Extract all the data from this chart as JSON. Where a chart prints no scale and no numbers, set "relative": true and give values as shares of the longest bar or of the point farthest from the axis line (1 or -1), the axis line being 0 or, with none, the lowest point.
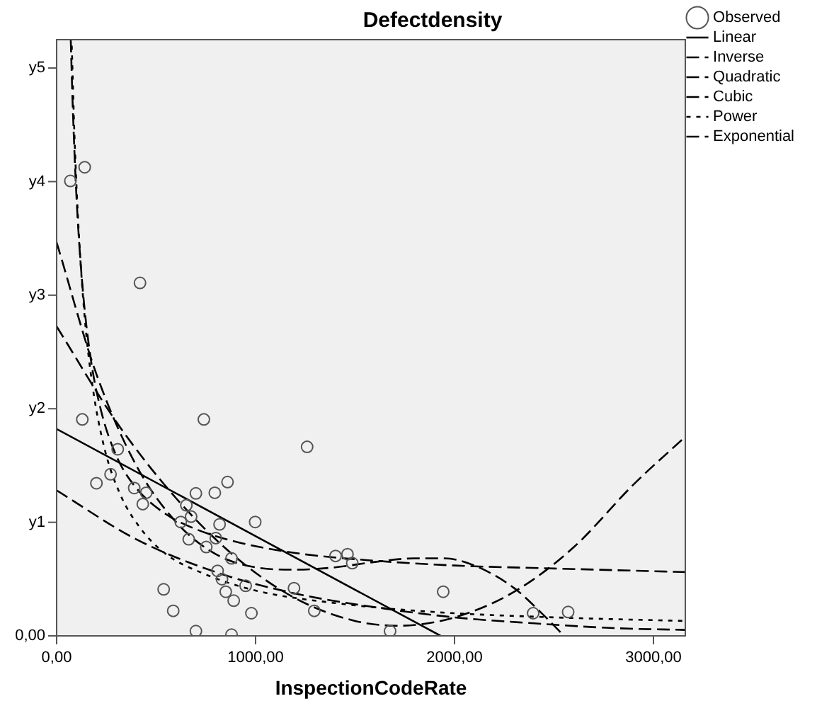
{
  "chart_data": {
    "type": "scatter",
    "title": "Defectdensity",
    "xlabel": "InspectionCodeRate",
    "relative": true,
    "xlim": [
      0,
      3160
    ],
    "xticks": [
      {
        "value": 0,
        "label": "0,00"
      },
      {
        "value": 1000,
        "label": "1000,00"
      },
      {
        "value": 2000,
        "label": "2000,00"
      },
      {
        "value": 3000,
        "label": "3000,00"
      }
    ],
    "annotations": [
      "0,00",
      "y1",
      "y2",
      "y3",
      "y4",
      "y5"
    ],
    "legend": "top right",
    "series": [
      {
        "name": "Observed",
        "type": "scatter",
        "marker": "circle",
        "color": "#555555",
        "x": [
          69,
          141,
          419,
          129,
          200,
          271,
          307,
          390,
          433,
          450,
          538,
          586,
          624,
          652,
          664,
          676,
          700,
          700,
          740,
          752,
          795,
          800,
          809,
          819,
          831,
          850,
          859,
          879,
          879,
          890,
          950,
          979,
          998,
          1193,
          1259,
          1295,
          1402,
          1462,
          1486,
          1676,
          1943,
          2395,
          2571
        ],
        "values": [
          0.763,
          0.786,
          0.592,
          0.363,
          0.256,
          0.271,
          0.313,
          0.248,
          0.221,
          0.24,
          0.078,
          0.042,
          0.191,
          0.219,
          0.162,
          0.2,
          0.239,
          0.008,
          0.363,
          0.149,
          0.24,
          0.164,
          0.109,
          0.187,
          0.095,
          0.074,
          0.258,
          0.13,
          0.002,
          0.059,
          0.084,
          0.038,
          0.191,
          0.08,
          0.317,
          0.042,
          0.134,
          0.137,
          0.122,
          0.008,
          0.074,
          0.038,
          0.04
        ]
      },
      {
        "name": "Linear",
        "type": "line",
        "line_style": "solid",
        "color": "#000000",
        "x": [
          0,
          1930
        ],
        "values": [
          0.347,
          0
        ]
      },
      {
        "name": "Inverse",
        "type": "line",
        "line_style": "dashed",
        "color": "#000000",
        "x": [
          71,
          80,
          100,
          130,
          170,
          220,
          300,
          400,
          550,
          700,
          900,
          1200,
          1600,
          2000,
          2500,
          3160
        ],
        "values": [
          1,
          0.897,
          0.735,
          0.586,
          0.468,
          0.382,
          0.302,
          0.248,
          0.204,
          0.179,
          0.158,
          0.139,
          0.126,
          0.118,
          0.113,
          0.107
        ]
      },
      {
        "name": "Quadratic",
        "type": "line",
        "line_style": "dashed",
        "color": "#000000",
        "x": [
          0,
          300,
          600,
          900,
          1200,
          1500,
          1720,
          2000,
          2300,
          2600,
          2900,
          3160
        ],
        "values": [
          0.519,
          0.359,
          0.231,
          0.132,
          0.063,
          0.025,
          0.017,
          0.031,
          0.074,
          0.149,
          0.254,
          0.334
        ]
      },
      {
        "name": "Cubic",
        "type": "line",
        "line_style": "dashed",
        "color": "#000000",
        "x": [
          0,
          200,
          400,
          600,
          800,
          1000,
          1200,
          1400,
          1600,
          1800,
          1950,
          2100,
          2300,
          2450,
          2550
        ],
        "values": [
          0.66,
          0.439,
          0.286,
          0.191,
          0.137,
          0.115,
          0.111,
          0.115,
          0.124,
          0.13,
          0.13,
          0.118,
          0.08,
          0.034,
          0
        ]
      },
      {
        "name": "Power",
        "type": "line",
        "line_style": "dotted",
        "color": "#000000",
        "x": [
          76,
          90,
          110,
          140,
          180,
          240,
          320,
          420,
          550,
          735,
          1000,
          1400,
          1900,
          2500,
          3160
        ],
        "values": [
          0.99,
          0.836,
          0.685,
          0.538,
          0.42,
          0.315,
          0.237,
          0.181,
          0.137,
          0.105,
          0.076,
          0.055,
          0.04,
          0.031,
          0.025
        ]
      },
      {
        "name": "Exponential",
        "type": "line",
        "line_style": "dashed",
        "color": "#000000",
        "x": [
          0,
          400,
          800,
          1200,
          1600,
          2000,
          2400,
          2800,
          3160
        ],
        "values": [
          0.244,
          0.162,
          0.107,
          0.071,
          0.048,
          0.031,
          0.021,
          0.013,
          0.01
        ]
      }
    ]
  }
}
